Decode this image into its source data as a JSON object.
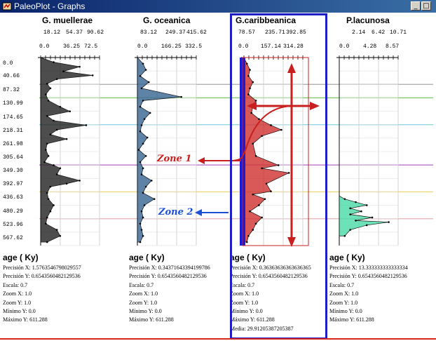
{
  "window": {
    "title": "PaleoPlot - Graphs",
    "buttons": {
      "minimize": "_",
      "maximize": "□"
    }
  },
  "depth_axis": {
    "labels": [
      "0.0",
      "40.66",
      "87.32",
      "130.99",
      "174.65",
      "218.31",
      "261.98",
      "305.64",
      "349.30",
      "392.97",
      "436.63",
      "480.29",
      "523.96",
      "567.62"
    ],
    "max": 611.288
  },
  "horizontal_lines": [
    {
      "depth": 87.32,
      "color": "#a8a8a8"
    },
    {
      "depth": 130.99,
      "color": "#7fc96a"
    },
    {
      "depth": 218.31,
      "color": "#8fd9e6"
    },
    {
      "depth": 349.3,
      "color": "#b366c6"
    },
    {
      "depth": 436.63,
      "color": "#f0d87a"
    },
    {
      "depth": 523.96,
      "color": "#e7b3b3"
    }
  ],
  "panels": [
    {
      "title": "G. muellerae",
      "top_ticks": [
        "18.12",
        "54.37",
        "90.62"
      ],
      "bottom_ticks": [
        "0.0",
        "36.25",
        "72.5"
      ],
      "axis_label": "age ( Ky)",
      "info": [
        "Precisión X: 1.5763546798029557",
        "Precisión Y: 0.6543560482129536",
        "Escala: 0.7",
        "Zoom X: 1.0",
        "Zoom Y: 1.0",
        "Mínimo Y: 0.0",
        "Máximo Y: 611.288"
      ],
      "fill": "#111111"
    },
    {
      "title": "G. oceanica",
      "top_ticks": [
        "83.12",
        "249.37",
        "415.62"
      ],
      "bottom_ticks": [
        "0.0",
        "166.25",
        "332.5"
      ],
      "axis_label": "age ( Ky)",
      "info": [
        "Precisión X: 0.34371643394199786",
        "Precisión Y: 0.6543560482129536",
        "Escala: 0.7",
        "Zoom X: 1.0",
        "Zoom Y: 1.0",
        "Mínimo Y: 0.0",
        "Máximo Y: 611.288"
      ],
      "fill": "#2a5a8a"
    },
    {
      "title": "G.caribbeanica",
      "top_ticks": [
        "78.57",
        "235.71",
        "392.85"
      ],
      "bottom_ticks": [
        "0.0",
        "157.14",
        "314.28"
      ],
      "axis_label": "age ( Ky)",
      "info": [
        "Precisión X: 0.3636363636363636​5",
        "Precisión Y: 0.6543560482129536",
        "Escala: 0.7",
        "Zoom X: 1.0",
        "Zoom Y: 1.0",
        "Mínimo Y: 0.0",
        "Máximo Y: 611.288",
        "Media: 29.91205387205387"
      ],
      "fill": "#cc2222"
    },
    {
      "title": "P.lacunosa",
      "top_ticks": [
        "2.14",
        "6.42",
        "10.71"
      ],
      "bottom_ticks": [
        "0.0",
        "4.28",
        "8.57"
      ],
      "axis_label": "age ( Ky)",
      "info": [
        "Precisión X: 13.333333333333334",
        "Precisión Y: 0.6543560482129536",
        "Escala: 0.7",
        "Zoom X: 1.0",
        "Zoom Y: 1.0",
        "Mínimo Y: 0.0",
        "Máximo Y: 611.288"
      ],
      "fill": "#3cd8a0"
    }
  ],
  "annotations": {
    "zone1": "Zone 1",
    "zone2": "Zone 2",
    "zone1_color": "#c8201f",
    "zone2_color": "#1b4fd6"
  },
  "chart_data": [
    {
      "type": "area",
      "title": "G. muellerae",
      "xlim": [
        0,
        90.62
      ],
      "ylim": [
        0,
        611.288
      ],
      "x": [
        0,
        20,
        60,
        35,
        80,
        25,
        10,
        15,
        8,
        12,
        30,
        45,
        10,
        20,
        70,
        25,
        15,
        40,
        10,
        8,
        12,
        6,
        20,
        30,
        25,
        60,
        40,
        15,
        10,
        12,
        20,
        15,
        10,
        8,
        25,
        30,
        10
      ],
      "y": [
        0,
        15,
        30,
        45,
        58,
        70,
        85,
        100,
        120,
        140,
        160,
        175,
        190,
        205,
        220,
        235,
        250,
        265,
        280,
        300,
        320,
        340,
        350,
        360,
        380,
        400,
        410,
        420,
        440,
        460,
        480,
        500,
        520,
        540,
        560,
        580,
        600
      ]
    },
    {
      "type": "area",
      "title": "G. oceanica",
      "xlim": [
        0,
        415.62
      ],
      "ylim": [
        0,
        611.288
      ],
      "x": [
        0,
        40,
        60,
        20,
        80,
        30,
        310,
        40,
        20,
        90,
        50,
        30,
        20,
        70,
        40,
        10,
        60,
        20,
        40,
        30,
        100,
        60,
        40,
        120,
        50,
        30,
        40,
        20,
        30,
        40,
        20
      ],
      "y": [
        0,
        20,
        40,
        60,
        80,
        100,
        128,
        140,
        160,
        180,
        200,
        220,
        240,
        260,
        280,
        300,
        320,
        340,
        360,
        380,
        400,
        420,
        440,
        460,
        480,
        500,
        520,
        540,
        560,
        580,
        600
      ]
    },
    {
      "type": "area",
      "title": "G.caribbeanica",
      "xlim": [
        0,
        392.85
      ],
      "ylim": [
        0,
        611.288
      ],
      "x": [
        0,
        20,
        40,
        30,
        60,
        40,
        30,
        80,
        60,
        50,
        100,
        180,
        250,
        120,
        60,
        80,
        230,
        120,
        300,
        150,
        180,
        60,
        140,
        100,
        40,
        120,
        80,
        60,
        30,
        20
      ],
      "y": [
        0,
        20,
        40,
        60,
        80,
        100,
        120,
        140,
        160,
        180,
        200,
        220,
        235,
        255,
        280,
        320,
        350,
        360,
        375,
        410,
        435,
        445,
        460,
        480,
        500,
        520,
        540,
        560,
        580,
        600
      ]
    },
    {
      "type": "area",
      "title": "P.lacunosa",
      "xlim": [
        0,
        10.71
      ],
      "ylim": [
        0,
        611.288
      ],
      "x": [
        0,
        0,
        0,
        0,
        0,
        0,
        0,
        0,
        0,
        1,
        3,
        5,
        2,
        4,
        2,
        6,
        3,
        9,
        5,
        2,
        1
      ],
      "y": [
        0,
        100,
        200,
        300,
        380,
        420,
        430,
        440,
        450,
        460,
        470,
        480,
        490,
        500,
        510,
        520,
        530,
        535,
        545,
        560,
        580
      ]
    }
  ]
}
